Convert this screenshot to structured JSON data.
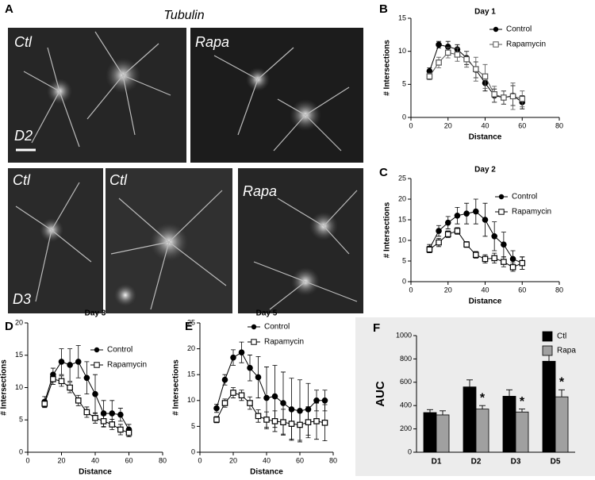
{
  "figure": {
    "panel_label": "A",
    "image_title": "Tubulin",
    "images": [
      {
        "label": "Ctl"
      },
      {
        "label": "Rapa"
      },
      {
        "label": "Ctl"
      },
      {
        "label": "Ctl"
      },
      {
        "label": "Rapa"
      }
    ],
    "day_labels": [
      "D2",
      "D3"
    ]
  },
  "chart_data": [
    {
      "type": "line",
      "panel": "B",
      "title": "Day 1",
      "x_label": "Distance",
      "y_label": "# Intersections",
      "x": [
        10,
        15,
        20,
        25,
        30,
        35,
        40,
        45,
        50,
        55,
        60
      ],
      "series": [
        {
          "name": "Control",
          "color": "#000000",
          "marker": "circle",
          "values": [
            7,
            11,
            10.7,
            10.3,
            9,
            7.2,
            5.2,
            3.3,
            3,
            3.3,
            2.3
          ],
          "errors": [
            0.5,
            0.5,
            0.8,
            0.7,
            1,
            1.2,
            1.2,
            1,
            1,
            1.5,
            1
          ]
        },
        {
          "name": "Rapamycin",
          "color": "#555555",
          "marker": "square",
          "values": [
            6.2,
            8.3,
            9.8,
            9.5,
            8.8,
            7.3,
            6.2,
            3.5,
            3,
            3.2,
            2.8
          ],
          "errors": [
            0.5,
            0.8,
            0.8,
            1,
            1.2,
            1.8,
            1.8,
            1.2,
            1,
            2,
            1.2
          ]
        }
      ],
      "xlim": [
        0,
        80
      ],
      "xticks": [
        0,
        20,
        40,
        60,
        80
      ],
      "ylim": [
        0,
        15
      ],
      "yticks": [
        0,
        5,
        10,
        15
      ]
    },
    {
      "type": "line",
      "panel": "C",
      "title": "Day 2",
      "x_label": "Distance",
      "y_label": "# Intersections",
      "x": [
        10,
        15,
        20,
        25,
        30,
        35,
        40,
        45,
        50,
        55,
        60
      ],
      "series": [
        {
          "name": "Control",
          "color": "#000000",
          "marker": "circle",
          "values": [
            8,
            12.3,
            14.3,
            16,
            16.5,
            17,
            15,
            11,
            9,
            5.5,
            4.5
          ],
          "errors": [
            1,
            1.3,
            1.5,
            2,
            2.5,
            3,
            4,
            3.5,
            3,
            2,
            1.5
          ]
        },
        {
          "name": "Rapamycin",
          "color": "#000000",
          "marker": "square",
          "values": [
            7.8,
            9.5,
            11.5,
            12.3,
            9,
            6.5,
            5.5,
            5.7,
            4.8,
            3.5,
            4.5
          ],
          "errors": [
            0.8,
            1,
            0.8,
            0.8,
            0.7,
            0.8,
            1,
            1.2,
            1.2,
            1,
            1.5
          ]
        }
      ],
      "xlim": [
        0,
        80
      ],
      "xticks": [
        0,
        20,
        40,
        60,
        80
      ],
      "ylim": [
        0,
        25
      ],
      "yticks": [
        0,
        5,
        10,
        15,
        20,
        25
      ]
    },
    {
      "type": "line",
      "panel": "D",
      "title": "Day 3",
      "x_label": "Distance",
      "y_label": "# Intersections",
      "x": [
        10,
        15,
        20,
        25,
        30,
        35,
        40,
        45,
        50,
        55,
        60
      ],
      "series": [
        {
          "name": "Control",
          "color": "#000000",
          "marker": "circle",
          "values": [
            7.8,
            12,
            14,
            13.5,
            14,
            11.5,
            9,
            6,
            6,
            5.8,
            3.5
          ],
          "errors": [
            0.8,
            1,
            2,
            2.5,
            2.5,
            2.5,
            3,
            2,
            2,
            1,
            0.8
          ]
        },
        {
          "name": "Rapamycin",
          "color": "#000000",
          "marker": "square",
          "values": [
            7.5,
            11.3,
            11,
            10,
            8,
            6.2,
            5.3,
            4.8,
            4.3,
            3.5,
            3
          ],
          "errors": [
            0.6,
            0.8,
            0.8,
            0.8,
            0.8,
            0.8,
            0.8,
            0.9,
            0.8,
            0.8,
            0.6
          ]
        }
      ],
      "xlim": [
        0,
        80
      ],
      "xticks": [
        0,
        20,
        40,
        60,
        80
      ],
      "ylim": [
        0,
        20
      ],
      "yticks": [
        0,
        5,
        10,
        15,
        20
      ]
    },
    {
      "type": "line",
      "panel": "E",
      "title": "Day 5",
      "x_label": "Distance",
      "y_label": "# Intersections",
      "x": [
        10,
        15,
        20,
        25,
        30,
        35,
        40,
        45,
        50,
        55,
        60,
        65,
        70,
        75
      ],
      "series": [
        {
          "name": "Control",
          "color": "#000000",
          "marker": "circle",
          "values": [
            8.5,
            14,
            18.3,
            19.3,
            16.3,
            14.5,
            10.5,
            10.8,
            9.5,
            8.3,
            8,
            8.3,
            10,
            10
          ],
          "errors": [
            0.8,
            1,
            1.5,
            2,
            2.5,
            4,
            6,
            6,
            6,
            6,
            6,
            5,
            2,
            2
          ]
        },
        {
          "name": "Rapamycin",
          "color": "#000000",
          "marker": "square",
          "values": [
            6.3,
            9.5,
            11.5,
            11,
            9.5,
            7,
            6.3,
            6,
            5.8,
            5.5,
            5.3,
            5.8,
            6,
            5.7
          ],
          "errors": [
            0.6,
            0.8,
            1,
            1,
            1.2,
            1.2,
            1.5,
            2,
            2.5,
            3,
            3,
            3,
            3.5,
            3.5
          ]
        }
      ],
      "xlim": [
        0,
        80
      ],
      "xticks": [
        0,
        20,
        40,
        60,
        80
      ],
      "ylim": [
        0,
        25
      ],
      "yticks": [
        0,
        5,
        10,
        15,
        20,
        25
      ]
    },
    {
      "type": "bar",
      "panel": "F",
      "y_label": "AUC",
      "categories": [
        "D1",
        "D2",
        "D3",
        "D5"
      ],
      "series": [
        {
          "name": "Ctl",
          "color": "#000000",
          "values": [
            340,
            560,
            480,
            780
          ],
          "errors": [
            25,
            60,
            55,
            80
          ]
        },
        {
          "name": "Rapa",
          "color": "#a0a0a0",
          "values": [
            320,
            370,
            345,
            475
          ],
          "errors": [
            35,
            30,
            25,
            60
          ]
        }
      ],
      "significance": [
        null,
        "*",
        "*",
        "*"
      ],
      "ylim": [
        0,
        1000
      ],
      "yticks": [
        0,
        200,
        400,
        600,
        800,
        1000
      ]
    }
  ]
}
